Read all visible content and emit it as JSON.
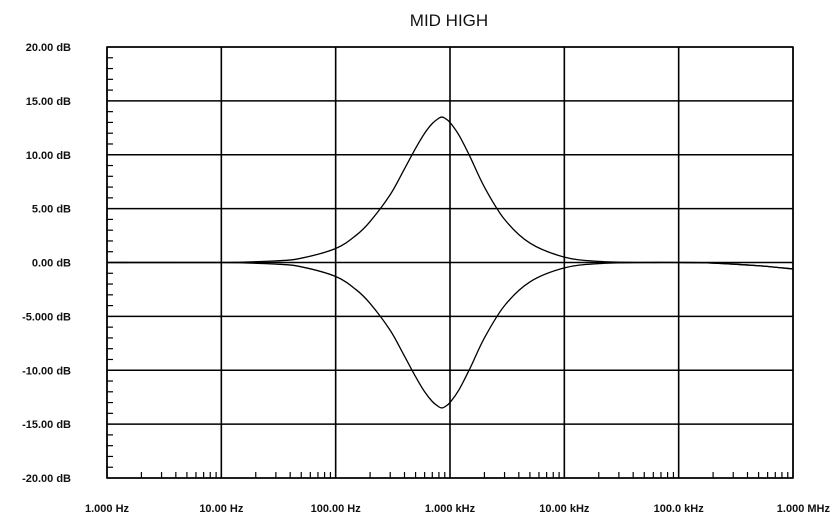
{
  "chart_data": {
    "type": "line",
    "title": "MID HIGH",
    "xlabel": "",
    "ylabel": "",
    "x_scale": "log",
    "xlim": [
      1,
      1000000
    ],
    "ylim": [
      -20,
      20
    ],
    "grid": true,
    "x_tick_values": [
      1,
      10,
      100,
      1000,
      10000,
      100000,
      1000000
    ],
    "x_tick_labels": [
      "1.000 Hz",
      "10.00 Hz",
      "100.00 Hz",
      "1.000 kHz",
      "10.00 kHz",
      "100.0 kHz",
      "1.000 MHz"
    ],
    "y_tick_values": [
      20,
      15,
      10,
      5,
      0,
      -5,
      -10,
      -15,
      -20
    ],
    "y_tick_labels": [
      "20.00 dB",
      "15.00 dB",
      "10.00 dB",
      "5.00 dB",
      "0.00 dB",
      "-5.000 dB",
      "-10.00 dB",
      "-15.00 dB",
      "-20.00 dB"
    ],
    "line_color": "#000000",
    "series": [
      {
        "x": [
          1,
          10,
          30,
          50,
          100,
          150,
          200,
          300,
          400,
          500,
          600,
          700,
          800,
          850,
          900,
          1000,
          1200,
          1500,
          2000,
          3000,
          5000,
          10000,
          20000,
          50000,
          100000,
          200000,
          500000,
          1000000
        ],
        "y": [
          0,
          0,
          0.15,
          0.4,
          1.3,
          2.5,
          3.8,
          6.3,
          8.7,
          10.6,
          12.0,
          12.9,
          13.4,
          13.5,
          13.4,
          13.0,
          11.8,
          9.8,
          7.0,
          4.0,
          1.8,
          0.5,
          0.1,
          0,
          0,
          -0.05,
          -0.3,
          -0.6
        ]
      },
      {
        "x": [
          1,
          10,
          30,
          50,
          100,
          150,
          200,
          300,
          400,
          500,
          600,
          700,
          800,
          850,
          900,
          1000,
          1200,
          1500,
          2000,
          3000,
          5000,
          10000,
          20000,
          50000,
          100000,
          200000,
          500000,
          1000000
        ],
        "y": [
          0,
          0,
          -0.15,
          -0.4,
          -1.3,
          -2.5,
          -3.8,
          -6.3,
          -8.7,
          -10.6,
          -12.0,
          -12.9,
          -13.4,
          -13.5,
          -13.4,
          -13.0,
          -11.8,
          -9.8,
          -7.0,
          -4.0,
          -1.8,
          -0.5,
          -0.1,
          0,
          0,
          -0.05,
          -0.3,
          -0.6
        ]
      }
    ]
  }
}
